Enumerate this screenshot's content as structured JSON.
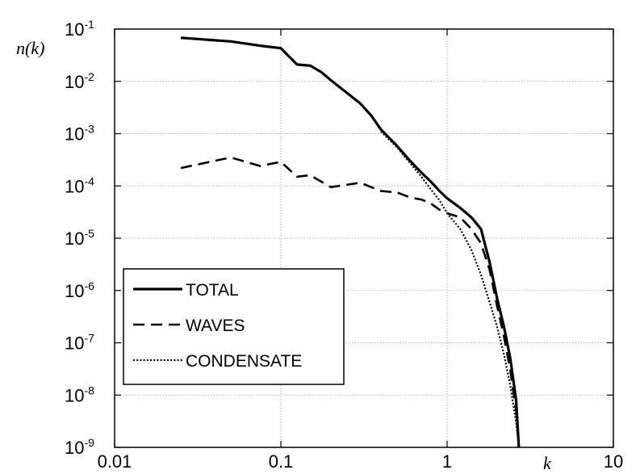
{
  "chart_data": {
    "type": "line",
    "xscale": "log",
    "yscale": "log",
    "xlim": [
      0.01,
      10
    ],
    "ylim": [
      1e-09,
      0.1
    ],
    "grid": true,
    "xlabel": "k",
    "ylabel": "n(k)",
    "xticks": [
      {
        "value": 0.01,
        "label": "0.01"
      },
      {
        "value": 0.1,
        "label": "0.1"
      },
      {
        "value": 1,
        "label": "1"
      },
      {
        "value": 10,
        "label": "10"
      }
    ],
    "yticks": [
      {
        "value": 1e-09,
        "base": "10",
        "exp": "-9"
      },
      {
        "value": 1e-08,
        "base": "10",
        "exp": "-8"
      },
      {
        "value": 1e-07,
        "base": "10",
        "exp": "-7"
      },
      {
        "value": 1e-06,
        "base": "10",
        "exp": "-6"
      },
      {
        "value": 1e-05,
        "base": "10",
        "exp": "-5"
      },
      {
        "value": 0.0001,
        "base": "10",
        "exp": "-4"
      },
      {
        "value": 0.001,
        "base": "10",
        "exp": "-3"
      },
      {
        "value": 0.01,
        "base": "10",
        "exp": "-2"
      },
      {
        "value": 0.1,
        "base": "10",
        "exp": "-1"
      }
    ],
    "legend": {
      "position": "lower-left",
      "entries": [
        {
          "label": "TOTAL",
          "style": "solid"
        },
        {
          "label": "WAVES",
          "style": "dashed"
        },
        {
          "label": "CONDENSATE",
          "style": "dotted"
        }
      ]
    },
    "series": [
      {
        "name": "TOTAL",
        "style": "solid",
        "points": [
          [
            0.025,
            0.068
          ],
          [
            0.05,
            0.058
          ],
          [
            0.075,
            0.048
          ],
          [
            0.1,
            0.043
          ],
          [
            0.125,
            0.021
          ],
          [
            0.15,
            0.02
          ],
          [
            0.175,
            0.015
          ],
          [
            0.2,
            0.0105
          ],
          [
            0.25,
            0.006
          ],
          [
            0.3,
            0.0038
          ],
          [
            0.35,
            0.0022
          ],
          [
            0.4,
            0.0012
          ],
          [
            0.5,
            0.00058
          ],
          [
            0.6,
            0.0003
          ],
          [
            0.7,
            0.00018
          ],
          [
            0.8,
            0.00012
          ],
          [
            0.9,
            8e-05
          ],
          [
            1.0,
            5.8e-05
          ],
          [
            1.2,
            3.8e-05
          ],
          [
            1.4,
            2.5e-05
          ],
          [
            1.6,
            1.5e-05
          ],
          [
            1.8,
            3.5e-06
          ],
          [
            2.0,
            7e-07
          ],
          [
            2.2,
            2e-07
          ],
          [
            2.4,
            5e-08
          ],
          [
            2.6,
            8e-09
          ],
          [
            2.7,
            1e-09
          ]
        ]
      },
      {
        "name": "WAVES",
        "style": "dashed",
        "points": [
          [
            0.025,
            0.00022
          ],
          [
            0.05,
            0.00035
          ],
          [
            0.075,
            0.00024
          ],
          [
            0.1,
            0.00029
          ],
          [
            0.125,
            0.00015
          ],
          [
            0.15,
            0.00016
          ],
          [
            0.2,
            9.5e-05
          ],
          [
            0.3,
            0.000115
          ],
          [
            0.4,
            8e-05
          ],
          [
            0.5,
            7.5e-05
          ],
          [
            0.6,
            6e-05
          ],
          [
            0.7,
            5.5e-05
          ],
          [
            0.8,
            4.6e-05
          ],
          [
            0.9,
            3.5e-05
          ],
          [
            1.0,
            3e-05
          ],
          [
            1.2,
            2.5e-05
          ],
          [
            1.4,
            1.5e-05
          ],
          [
            1.6,
            8e-06
          ],
          [
            1.8,
            2.5e-06
          ],
          [
            2.0,
            5e-07
          ],
          [
            2.2,
            1.3e-07
          ],
          [
            2.4,
            3e-08
          ],
          [
            2.6,
            5e-09
          ],
          [
            2.7,
            1e-09
          ]
        ]
      },
      {
        "name": "CONDENSATE",
        "style": "dotted",
        "points": [
          [
            0.4,
            0.0011
          ],
          [
            0.5,
            0.00055
          ],
          [
            0.6,
            0.00027
          ],
          [
            0.7,
            0.00015
          ],
          [
            0.8,
            8.5e-05
          ],
          [
            0.9,
            5.3e-05
          ],
          [
            1.0,
            3e-05
          ],
          [
            1.2,
            1.5e-05
          ],
          [
            1.4,
            6e-06
          ],
          [
            1.6,
            2e-06
          ],
          [
            1.8,
            6e-07
          ],
          [
            2.0,
            2e-07
          ],
          [
            2.2,
            6e-08
          ],
          [
            2.4,
            1.5e-08
          ],
          [
            2.6,
            3e-09
          ],
          [
            2.7,
            1e-09
          ]
        ]
      }
    ]
  }
}
